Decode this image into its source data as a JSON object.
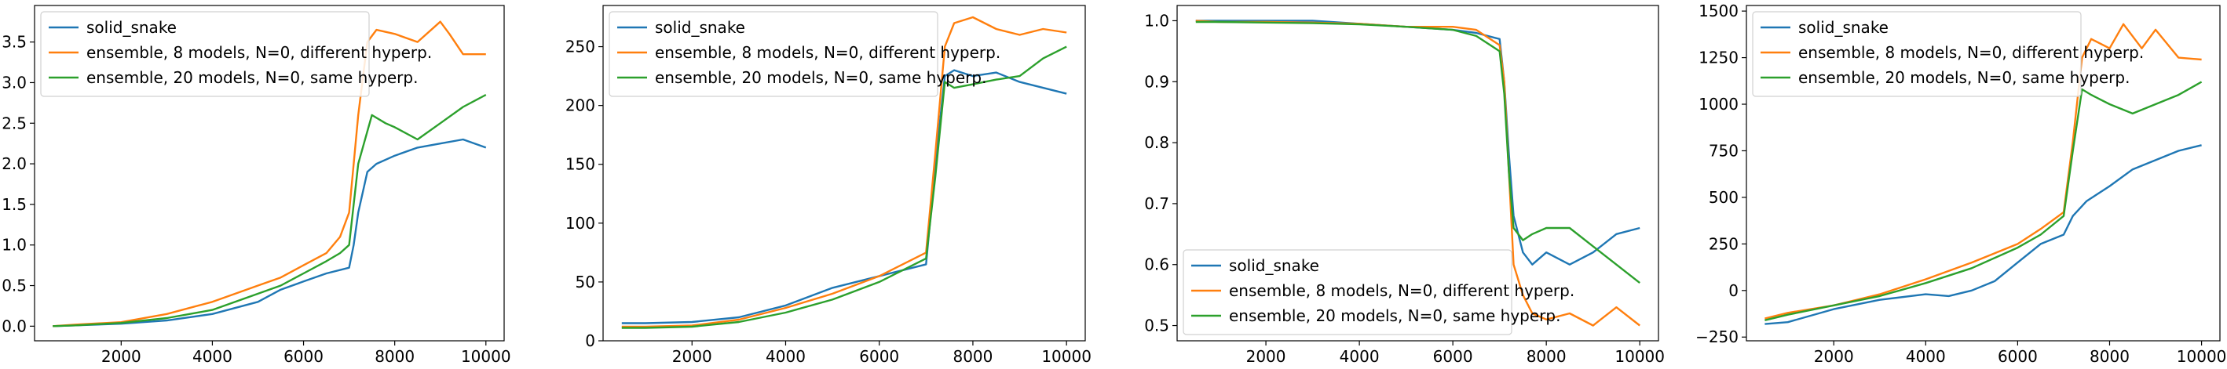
{
  "legend_entries": [
    "solid_snake",
    "ensemble, 8 models, N=0, different hyperp.",
    "ensemble, 20 models, N=0, same hyperp."
  ],
  "colors": {
    "series0": "#1f77b4",
    "series1": "#ff7f0e",
    "series2": "#2ca02c"
  },
  "chart_data": [
    {
      "type": "line",
      "title": "",
      "xlabel": "",
      "ylabel": "",
      "xlim": [
        100,
        10400
      ],
      "ylim": [
        -0.18,
        3.95
      ],
      "xticks": [
        2000,
        4000,
        6000,
        8000,
        10000
      ],
      "xtick_labels": [
        "2000",
        "4000",
        "6000",
        "8000",
        "10000"
      ],
      "yticks": [
        0.0,
        0.5,
        1.0,
        1.5,
        2.0,
        2.5,
        3.0,
        3.5
      ],
      "ytick_labels": [
        "0.0",
        "0.5",
        "1.0",
        "1.5",
        "2.0",
        "2.5",
        "3.0",
        "3.5"
      ],
      "legend": "top-left",
      "series": [
        {
          "name": "solid_snake",
          "x": [
            500,
            1000,
            2000,
            3000,
            4000,
            5000,
            5500,
            6000,
            6500,
            7000,
            7100,
            7200,
            7400,
            7600,
            8000,
            8500,
            9000,
            9500,
            10000
          ],
          "y": [
            0.0,
            0.01,
            0.03,
            0.07,
            0.15,
            0.3,
            0.45,
            0.55,
            0.65,
            0.72,
            1.0,
            1.4,
            1.9,
            2.0,
            2.1,
            2.2,
            2.25,
            2.3,
            2.2
          ]
        },
        {
          "name": "ensemble, 8 models, N=0, different hyperp.",
          "x": [
            500,
            1000,
            2000,
            3000,
            4000,
            5000,
            5500,
            6000,
            6500,
            6800,
            7000,
            7200,
            7400,
            7600,
            8000,
            8500,
            9000,
            9200,
            9500,
            10000
          ],
          "y": [
            0.0,
            0.02,
            0.05,
            0.15,
            0.3,
            0.5,
            0.6,
            0.75,
            0.9,
            1.1,
            1.4,
            2.6,
            3.5,
            3.65,
            3.6,
            3.5,
            3.75,
            3.6,
            3.35,
            3.35
          ]
        },
        {
          "name": "ensemble, 20 models, N=0, same hyperp.",
          "x": [
            500,
            1000,
            2000,
            3000,
            4000,
            5000,
            5500,
            6000,
            6500,
            6800,
            7000,
            7200,
            7500,
            7800,
            8000,
            8500,
            9000,
            9500,
            10000
          ],
          "y": [
            0.0,
            0.01,
            0.04,
            0.1,
            0.2,
            0.4,
            0.5,
            0.65,
            0.8,
            0.9,
            1.0,
            2.0,
            2.6,
            2.5,
            2.45,
            2.3,
            2.5,
            2.7,
            2.85
          ]
        }
      ]
    },
    {
      "type": "line",
      "title": "",
      "xlabel": "",
      "ylabel": "",
      "xlim": [
        100,
        10400
      ],
      "ylim": [
        0,
        285
      ],
      "xticks": [
        2000,
        4000,
        6000,
        8000,
        10000
      ],
      "xtick_labels": [
        "2000",
        "4000",
        "6000",
        "8000",
        "10000"
      ],
      "yticks": [
        0,
        50,
        100,
        150,
        200,
        250
      ],
      "ytick_labels": [
        "0",
        "50",
        "100",
        "150",
        "200",
        "250"
      ],
      "legend": "top-left",
      "series": [
        {
          "name": "solid_snake",
          "x": [
            500,
            1000,
            2000,
            3000,
            4000,
            5000,
            6000,
            6500,
            7000,
            7200,
            7400,
            7600,
            8000,
            8500,
            9000,
            9500,
            10000
          ],
          "y": [
            15,
            15,
            16,
            20,
            30,
            45,
            55,
            60,
            65,
            150,
            225,
            230,
            225,
            228,
            220,
            215,
            210
          ]
        },
        {
          "name": "ensemble, 8 models, N=0, different hyperp.",
          "x": [
            500,
            1000,
            2000,
            3000,
            4000,
            5000,
            6000,
            6500,
            7000,
            7200,
            7400,
            7600,
            8000,
            8500,
            9000,
            9500,
            10000
          ],
          "y": [
            12,
            12,
            13,
            18,
            28,
            40,
            55,
            65,
            75,
            160,
            250,
            270,
            275,
            265,
            260,
            265,
            262
          ]
        },
        {
          "name": "ensemble, 20 models, N=0, same hyperp.",
          "x": [
            500,
            1000,
            2000,
            3000,
            4000,
            5000,
            6000,
            6500,
            7000,
            7200,
            7400,
            7600,
            8000,
            8500,
            9000,
            9500,
            10000
          ],
          "y": [
            11,
            11,
            12,
            16,
            24,
            35,
            50,
            60,
            70,
            140,
            220,
            215,
            218,
            222,
            225,
            240,
            250
          ]
        }
      ]
    },
    {
      "type": "line",
      "title": "",
      "xlabel": "",
      "ylabel": "",
      "xlim": [
        100,
        10400
      ],
      "ylim": [
        0.475,
        1.025
      ],
      "xticks": [
        2000,
        4000,
        6000,
        8000,
        10000
      ],
      "xtick_labels": [
        "2000",
        "4000",
        "6000",
        "8000",
        "10000"
      ],
      "yticks": [
        0.5,
        0.6,
        0.7,
        0.8,
        0.9,
        1.0
      ],
      "ytick_labels": [
        "0.5",
        "0.6",
        "0.7",
        "0.8",
        "0.9",
        "1.0"
      ],
      "legend": "bottom-left",
      "series": [
        {
          "name": "solid_snake",
          "x": [
            500,
            1000,
            2000,
            3000,
            4000,
            5000,
            6000,
            6500,
            7000,
            7100,
            7200,
            7300,
            7500,
            7700,
            8000,
            8500,
            9000,
            9500,
            10000
          ],
          "y": [
            1.0,
            1.0,
            1.0,
            1.0,
            0.995,
            0.99,
            0.985,
            0.98,
            0.97,
            0.9,
            0.78,
            0.68,
            0.62,
            0.6,
            0.62,
            0.6,
            0.62,
            0.65,
            0.66
          ]
        },
        {
          "name": "ensemble, 8 models, N=0, different hyperp.",
          "x": [
            500,
            1000,
            2000,
            3000,
            4000,
            5000,
            6000,
            6500,
            7000,
            7100,
            7200,
            7300,
            7500,
            7700,
            8000,
            8500,
            9000,
            9500,
            10000
          ],
          "y": [
            1.0,
            0.998,
            0.998,
            0.997,
            0.995,
            0.99,
            0.99,
            0.985,
            0.96,
            0.9,
            0.75,
            0.6,
            0.55,
            0.52,
            0.51,
            0.52,
            0.5,
            0.53,
            0.5
          ]
        },
        {
          "name": "ensemble, 20 models, N=0, same hyperp.",
          "x": [
            500,
            1000,
            2000,
            3000,
            4000,
            5000,
            6000,
            6500,
            7000,
            7100,
            7200,
            7300,
            7500,
            7700,
            8000,
            8500,
            9000,
            9500,
            10000
          ],
          "y": [
            0.998,
            0.998,
            0.997,
            0.996,
            0.994,
            0.99,
            0.985,
            0.975,
            0.95,
            0.88,
            0.75,
            0.66,
            0.64,
            0.65,
            0.66,
            0.66,
            0.63,
            0.6,
            0.57
          ]
        }
      ]
    },
    {
      "type": "line",
      "title": "",
      "xlabel": "",
      "ylabel": "",
      "xlim": [
        100,
        10400
      ],
      "ylim": [
        -270,
        1530
      ],
      "xticks": [
        2000,
        4000,
        6000,
        8000,
        10000
      ],
      "xtick_labels": [
        "2000",
        "4000",
        "6000",
        "8000",
        "10000"
      ],
      "yticks": [
        -250,
        0,
        250,
        500,
        750,
        1000,
        1250,
        1500
      ],
      "ytick_labels": [
        "−250",
        "0",
        "250",
        "500",
        "750",
        "1000",
        "1250",
        "1500"
      ],
      "legend": "top-left",
      "series": [
        {
          "name": "solid_snake",
          "x": [
            500,
            1000,
            2000,
            3000,
            4000,
            4500,
            5000,
            5500,
            6000,
            6500,
            7000,
            7200,
            7500,
            8000,
            8500,
            9000,
            9500,
            10000
          ],
          "y": [
            -180,
            -170,
            -100,
            -50,
            -20,
            -30,
            0,
            50,
            150,
            250,
            300,
            400,
            480,
            560,
            650,
            700,
            750,
            780
          ]
        },
        {
          "name": "ensemble, 8 models, N=0, different hyperp.",
          "x": [
            500,
            1000,
            2000,
            3000,
            4000,
            5000,
            6000,
            6500,
            7000,
            7200,
            7400,
            7600,
            8000,
            8300,
            8700,
            9000,
            9500,
            10000
          ],
          "y": [
            -150,
            -120,
            -80,
            -20,
            60,
            150,
            250,
            330,
            420,
            800,
            1250,
            1350,
            1300,
            1430,
            1300,
            1400,
            1250,
            1240
          ]
        },
        {
          "name": "ensemble, 20 models, N=0, same hyperp.",
          "x": [
            500,
            1000,
            2000,
            3000,
            4000,
            5000,
            6000,
            6500,
            7000,
            7200,
            7400,
            7600,
            8000,
            8500,
            9000,
            9500,
            10000
          ],
          "y": [
            -160,
            -130,
            -80,
            -30,
            40,
            120,
            230,
            300,
            400,
            750,
            1080,
            1050,
            1000,
            950,
            1000,
            1050,
            1120
          ]
        }
      ]
    }
  ]
}
